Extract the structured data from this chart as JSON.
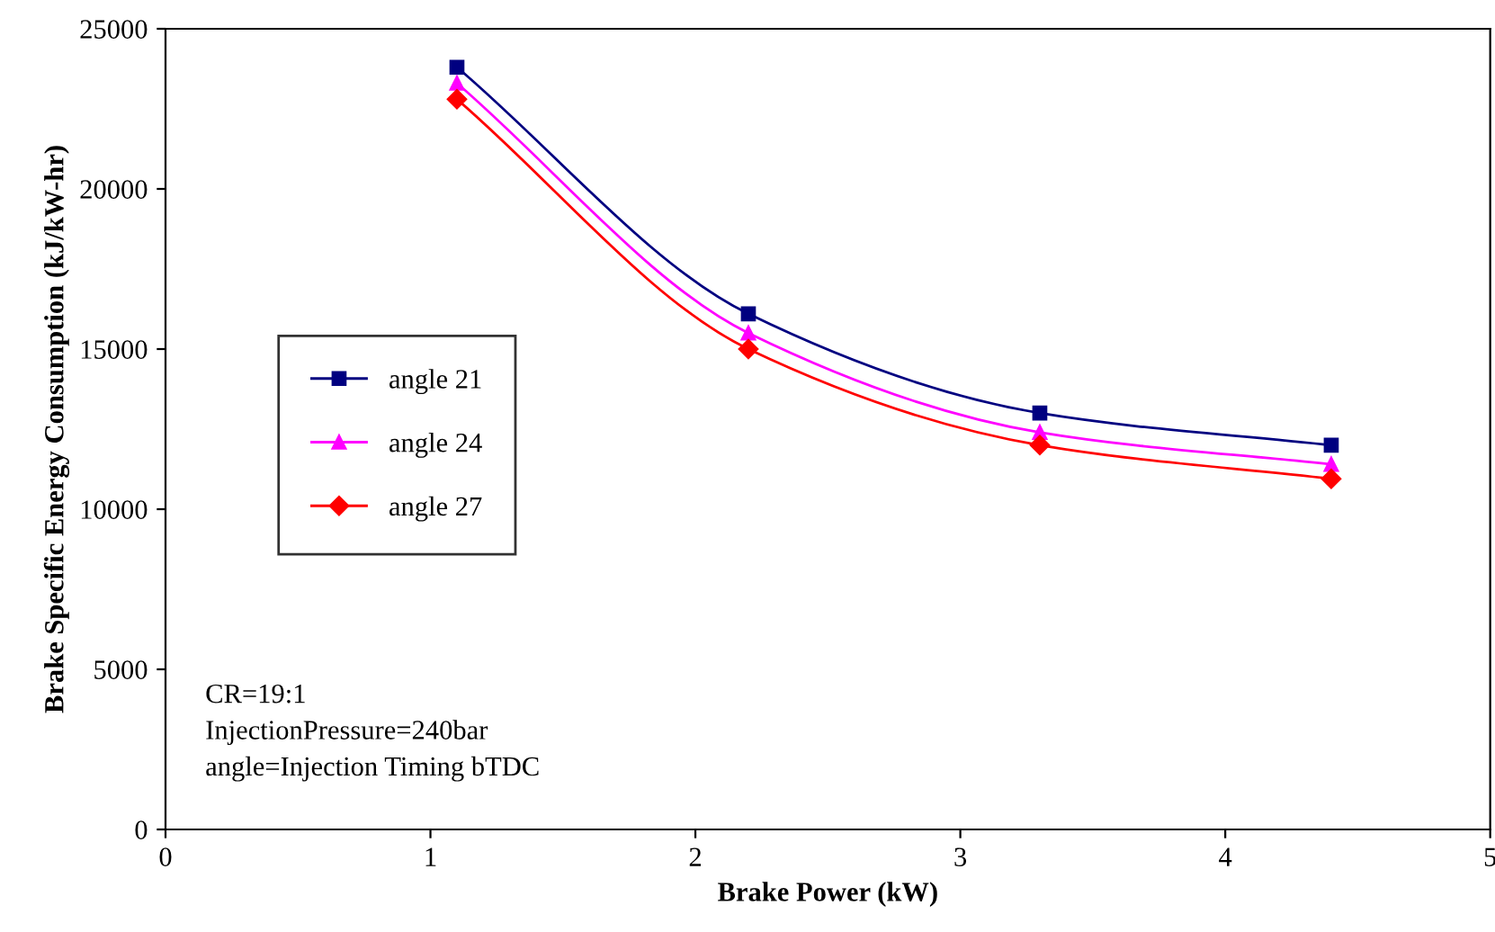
{
  "chart_data": {
    "type": "line",
    "xlabel": "Brake Power (kW)",
    "ylabel": "Brake Specific Energy Consumption (kJ/kW-hr)",
    "x": [
      1.1,
      2.2,
      3.3,
      4.4
    ],
    "series": [
      {
        "name": "angle 21",
        "color": "#000080",
        "marker": "square",
        "values": [
          23800,
          16100,
          13000,
          12000
        ]
      },
      {
        "name": "angle 24",
        "color": "#ff00ff",
        "marker": "triangle",
        "values": [
          23300,
          15500,
          12400,
          11400
        ]
      },
      {
        "name": "angle 27",
        "color": "#ff0000",
        "marker": "diamond",
        "values": [
          22800,
          15000,
          12000,
          10950
        ]
      }
    ],
    "xlim": [
      0,
      5
    ],
    "xticks": [
      0,
      1,
      2,
      3,
      4,
      5
    ],
    "ylim": [
      0,
      25000
    ],
    "yticks": [
      0,
      5000,
      10000,
      15000,
      20000,
      25000
    ],
    "grid": false,
    "legend": "center left",
    "line_style": "solid",
    "annotations": [
      "CR=19:1\nInjectionPressure=240bar\nangle=Injection Timing bTDC"
    ]
  }
}
